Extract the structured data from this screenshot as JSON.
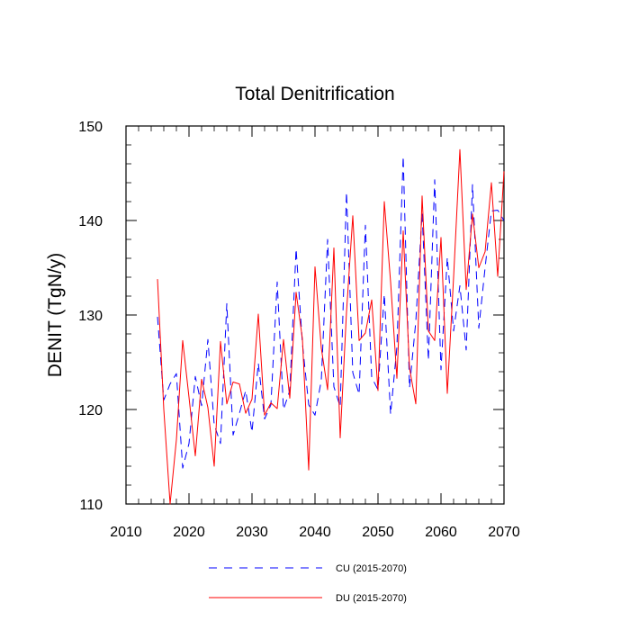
{
  "chart_data": {
    "type": "line",
    "title": "Total Denitrification",
    "xlabel": "",
    "ylabel": "DENIT  (TgN/y)",
    "xlim": [
      2010,
      2070
    ],
    "ylim": [
      110,
      150
    ],
    "xticks": [
      2010,
      2020,
      2030,
      2040,
      2050,
      2060,
      2070
    ],
    "yticks": [
      110,
      120,
      130,
      140,
      150
    ],
    "xtick_labels": [
      "2010",
      "2020",
      "2030",
      "2040",
      "2050",
      "2060",
      "2070"
    ],
    "ytick_labels": [
      "110",
      "120",
      "130",
      "140",
      "150"
    ],
    "legend_position": "bottom",
    "x": [
      2015,
      2016,
      2017,
      2018,
      2019,
      2020,
      2021,
      2022,
      2023,
      2024,
      2025,
      2026,
      2027,
      2028,
      2029,
      2030,
      2031,
      2032,
      2033,
      2034,
      2035,
      2036,
      2037,
      2038,
      2039,
      2040,
      2041,
      2042,
      2043,
      2044,
      2045,
      2046,
      2047,
      2048,
      2049,
      2050,
      2051,
      2052,
      2053,
      2054,
      2055,
      2056,
      2057,
      2058,
      2059,
      2060,
      2061,
      2062,
      2063,
      2064,
      2065,
      2066,
      2067,
      2068,
      2069,
      2070
    ],
    "series": [
      {
        "name": "CU (2015-2070)",
        "color": "#0000ff",
        "dash": "dashed",
        "values": [
          129.8,
          121.0,
          122.7,
          123.8,
          113.8,
          116.4,
          123.5,
          120.4,
          127.4,
          118.4,
          116.4,
          131.2,
          117.3,
          119.6,
          122.0,
          117.6,
          124.9,
          119.0,
          120.5,
          133.5,
          120.0,
          122.0,
          137.0,
          127.0,
          120.5,
          119.4,
          123.1,
          138.0,
          122.4,
          120.3,
          143.0,
          123.9,
          121.6,
          139.5,
          123.4,
          122.1,
          132.2,
          119.5,
          126.6,
          146.8,
          122.3,
          129.3,
          140.8,
          125.2,
          144.3,
          124.2,
          136.1,
          128.3,
          133.1,
          126.3,
          143.8,
          128.6,
          135.0,
          141.0,
          141.1,
          140.0
        ]
      },
      {
        "name": "DU (2015-2070)",
        "color": "#ff0000",
        "dash": "solid",
        "values": [
          133.8,
          120.0,
          110.0,
          116.8,
          127.3,
          121.3,
          115.1,
          123.2,
          120.2,
          114.0,
          127.2,
          120.6,
          122.9,
          122.7,
          119.6,
          121.1,
          130.1,
          119.4,
          120.7,
          120.1,
          127.4,
          121.2,
          132.4,
          127.5,
          113.6,
          135.1,
          126.5,
          122.1,
          137.1,
          117.0,
          130.3,
          140.5,
          127.3,
          128.1,
          131.6,
          122.0,
          142.0,
          133.5,
          123.3,
          138.9,
          124.4,
          120.6,
          142.6,
          128.3,
          127.3,
          138.2,
          121.7,
          134.0,
          147.5,
          132.7,
          140.7,
          135.0,
          136.7,
          144.0,
          134.1,
          145.2
        ]
      }
    ]
  }
}
